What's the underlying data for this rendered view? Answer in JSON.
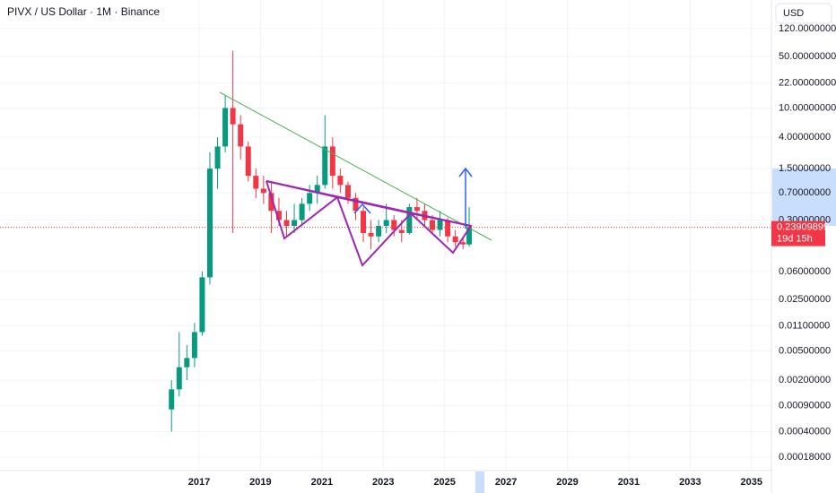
{
  "chart_data": {
    "type": "candlestick",
    "title": "PIVX / US Dollar · 1M · Binance",
    "currency": "USD",
    "log_scale": true,
    "x": [
      2016.1,
      2016.35,
      2016.6,
      2016.85,
      2017.1,
      2017.35,
      2017.6,
      2017.85,
      2018.1,
      2018.35,
      2018.6,
      2018.85,
      2019.1,
      2019.35,
      2019.6,
      2019.85,
      2020.1,
      2020.35,
      2020.6,
      2020.85,
      2021.1,
      2021.35,
      2021.6,
      2021.85,
      2022.1,
      2022.35,
      2022.6,
      2022.85,
      2023.1,
      2023.35,
      2023.6,
      2023.85,
      2024.1,
      2024.35,
      2024.6,
      2024.85,
      2025.1,
      2025.35,
      2025.6,
      2025.8
    ],
    "open": [
      0.0008,
      0.0015,
      0.003,
      0.004,
      0.009,
      0.05,
      1.5,
      3,
      10,
      6,
      3,
      1.2,
      0.8,
      0.7,
      0.4,
      0.3,
      0.25,
      0.3,
      0.5,
      0.7,
      0.9,
      3,
      1.2,
      0.9,
      0.6,
      0.4,
      0.2,
      0.18,
      0.25,
      0.3,
      0.22,
      0.2,
      0.45,
      0.4,
      0.3,
      0.22,
      0.3,
      0.18,
      0.15,
      0.14
    ],
    "high": [
      0.002,
      0.009,
      0.006,
      0.012,
      0.06,
      2.5,
      4,
      15,
      60,
      8,
      3.5,
      1.5,
      1.2,
      1.0,
      0.6,
      0.4,
      0.5,
      0.6,
      0.9,
      1.2,
      8,
      4,
      1.5,
      1.0,
      0.7,
      0.45,
      0.3,
      0.3,
      0.5,
      0.35,
      0.3,
      0.5,
      0.6,
      0.5,
      0.35,
      0.4,
      0.32,
      0.22,
      0.18,
      0.45
    ],
    "low": [
      0.0004,
      0.0012,
      0.002,
      0.003,
      0.008,
      0.04,
      0.8,
      2.5,
      0.2,
      2,
      1,
      0.6,
      0.5,
      0.2,
      0.25,
      0.18,
      0.2,
      0.25,
      0.4,
      0.5,
      0.8,
      0.8,
      0.7,
      0.5,
      0.3,
      0.15,
      0.12,
      0.15,
      0.2,
      0.18,
      0.15,
      0.19,
      0.3,
      0.25,
      0.2,
      0.18,
      0.15,
      0.13,
      0.12,
      0.13
    ],
    "close": [
      0.0015,
      0.003,
      0.004,
      0.009,
      0.05,
      1.5,
      3,
      10,
      6,
      3,
      1.2,
      0.8,
      0.7,
      0.4,
      0.3,
      0.25,
      0.3,
      0.5,
      0.7,
      0.9,
      3,
      1.2,
      0.9,
      0.6,
      0.4,
      0.2,
      0.18,
      0.25,
      0.3,
      0.22,
      0.2,
      0.45,
      0.4,
      0.3,
      0.22,
      0.3,
      0.18,
      0.15,
      0.14,
      0.239
    ],
    "up_color": "#089981",
    "down_color": "#f23645",
    "xlim": [
      2010.51,
      2035.65
    ],
    "xticks": [
      2017,
      2019,
      2021,
      2023,
      2025,
      2027,
      2029,
      2031,
      2033,
      2035
    ],
    "ylim": [
      0.000118,
      294
    ],
    "yticks": [
      {
        "value": 120,
        "label": "120.00000000"
      },
      {
        "value": 50,
        "label": "50.00000000"
      },
      {
        "value": 22,
        "label": "22.00000000"
      },
      {
        "value": 10,
        "label": "10.00000000"
      },
      {
        "value": 4,
        "label": "4.00000000"
      },
      {
        "value": 1.5,
        "label": "1.50000000"
      },
      {
        "value": 0.7,
        "label": "0.70000000"
      },
      {
        "value": 0.3,
        "label": "0.30000000"
      },
      {
        "value": 0.06,
        "label": "0.06000000"
      },
      {
        "value": 0.025,
        "label": "0.02500000"
      },
      {
        "value": 0.011,
        "label": "0.01100000"
      },
      {
        "value": 0.005,
        "label": "0.00500000"
      },
      {
        "value": 0.002,
        "label": "0.00200000"
      },
      {
        "value": 0.0009,
        "label": "0.00090000"
      },
      {
        "value": 0.0004,
        "label": "0.00040000"
      },
      {
        "value": 0.00018,
        "label": "0.00018000"
      }
    ],
    "last_price": 0.23909899,
    "countdown": "19d 15h",
    "grid": true
  }
}
